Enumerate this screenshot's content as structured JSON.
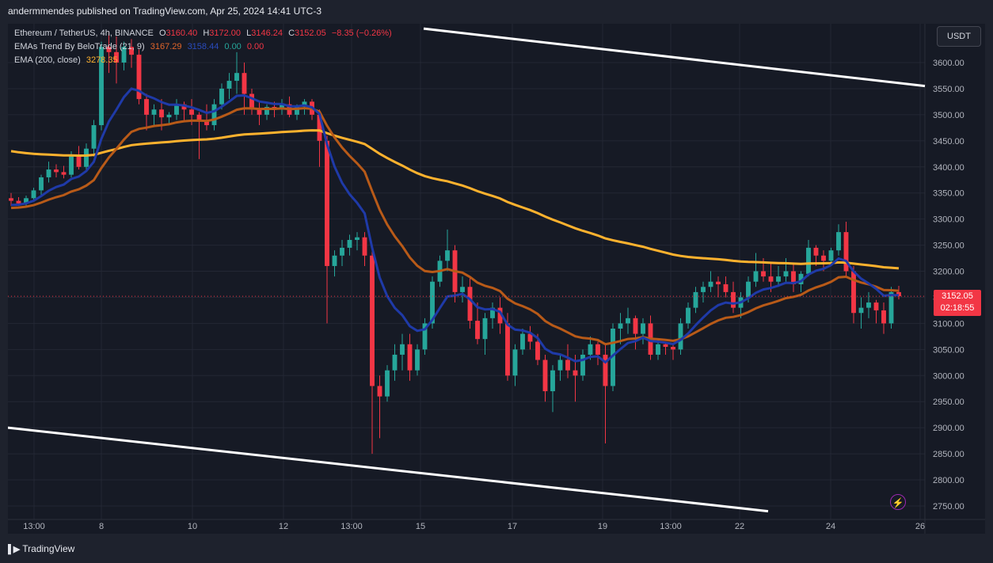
{
  "header": {
    "title": "andermmendes published on TradingView.com, Apr 25, 2024 14:41 UTC-3"
  },
  "legend": {
    "symbol": "Ethereum / TetherUS, 4h, BINANCE",
    "open_label": "O",
    "open": "3160.40",
    "high_label": "H",
    "high": "3172.00",
    "low_label": "L",
    "low": "3146.24",
    "close_label": "C",
    "close": "3152.05",
    "change": "−8.35 (−0.26%)",
    "ema_trend_name": "EMAs Trend By BeloTrade (21, 9)",
    "ema_trend_v1": "3167.29",
    "ema_trend_v2": "3158.44",
    "ema_trend_v3": "0.00",
    "ema_trend_v4": "0.00",
    "ema200_name": "EMA (200, close)",
    "ema200_value": "3278.35"
  },
  "currency_button": "USDT",
  "price_tag": {
    "price": "3152.05",
    "countdown": "02:18:55"
  },
  "footer": {
    "brand": "TradingView"
  },
  "colors": {
    "up": "#26a69a",
    "down": "#f23645",
    "ema21": "#b85a18",
    "ema9": "#1f3aa8",
    "ema200": "#ffb22e",
    "channel": "#ffffff",
    "background": "#161a25"
  },
  "chart_data": {
    "type": "candlestick",
    "symbol": "ETHUSDT",
    "interval": "4h",
    "x_tick_labels": [
      "13:00",
      "8",
      "10",
      "12",
      "13:00",
      "15",
      "17",
      "19",
      "13:00",
      "22",
      "24",
      "26"
    ],
    "y_tick_labels": [
      "3600.00",
      "3550.00",
      "3500.00",
      "3450.00",
      "3400.00",
      "3350.00",
      "3300.00",
      "3250.00",
      "3200.00",
      "3150.00",
      "3100.00",
      "3050.00",
      "3000.00",
      "2950.00",
      "2900.00",
      "2850.00",
      "2800.00",
      "2750.00"
    ],
    "ylim": [
      2735,
      3650
    ],
    "candles_ohlc": [
      [
        3340,
        3350,
        3325,
        3335
      ],
      [
        3335,
        3342,
        3325,
        3330
      ],
      [
        3330,
        3345,
        3322,
        3340
      ],
      [
        3340,
        3360,
        3335,
        3355
      ],
      [
        3355,
        3385,
        3345,
        3380
      ],
      [
        3380,
        3410,
        3370,
        3395
      ],
      [
        3395,
        3405,
        3380,
        3390
      ],
      [
        3390,
        3402,
        3378,
        3385
      ],
      [
        3385,
        3430,
        3380,
        3420
      ],
      [
        3420,
        3440,
        3395,
        3400
      ],
      [
        3400,
        3445,
        3395,
        3435
      ],
      [
        3435,
        3490,
        3420,
        3480
      ],
      [
        3480,
        3640,
        3470,
        3630
      ],
      [
        3630,
        3660,
        3580,
        3620
      ],
      [
        3620,
        3650,
        3560,
        3600
      ],
      [
        3600,
        3640,
        3585,
        3630
      ],
      [
        3630,
        3645,
        3590,
        3615
      ],
      [
        3615,
        3625,
        3520,
        3530
      ],
      [
        3530,
        3540,
        3470,
        3500
      ],
      [
        3500,
        3520,
        3480,
        3510
      ],
      [
        3510,
        3530,
        3470,
        3495
      ],
      [
        3495,
        3505,
        3480,
        3500
      ],
      [
        3500,
        3530,
        3490,
        3520
      ],
      [
        3520,
        3525,
        3490,
        3510
      ],
      [
        3510,
        3530,
        3480,
        3500
      ],
      [
        3500,
        3505,
        3415,
        3490
      ],
      [
        3490,
        3520,
        3470,
        3480
      ],
      [
        3480,
        3530,
        3470,
        3520
      ],
      [
        3520,
        3560,
        3510,
        3550
      ],
      [
        3550,
        3580,
        3530,
        3565
      ],
      [
        3565,
        3620,
        3540,
        3580
      ],
      [
        3580,
        3600,
        3500,
        3540
      ],
      [
        3540,
        3550,
        3500,
        3510
      ],
      [
        3510,
        3525,
        3480,
        3500
      ],
      [
        3500,
        3520,
        3490,
        3515
      ],
      [
        3515,
        3525,
        3495,
        3510
      ],
      [
        3510,
        3530,
        3500,
        3520
      ],
      [
        3520,
        3535,
        3495,
        3500
      ],
      [
        3500,
        3520,
        3490,
        3515
      ],
      [
        3515,
        3530,
        3500,
        3525
      ],
      [
        3525,
        3530,
        3490,
        3500
      ],
      [
        3500,
        3510,
        3400,
        3450
      ],
      [
        3450,
        3460,
        3100,
        3210
      ],
      [
        3210,
        3240,
        3190,
        3230
      ],
      [
        3230,
        3260,
        3210,
        3245
      ],
      [
        3245,
        3270,
        3230,
        3260
      ],
      [
        3260,
        3275,
        3240,
        3265
      ],
      [
        3265,
        3275,
        3210,
        3230
      ],
      [
        3230,
        3240,
        2850,
        2980
      ],
      [
        2980,
        3000,
        2880,
        2960
      ],
      [
        2960,
        3020,
        2950,
        3010
      ],
      [
        3010,
        3060,
        2990,
        3040
      ],
      [
        3040,
        3080,
        3010,
        3060
      ],
      [
        3060,
        3080,
        2990,
        3010
      ],
      [
        3010,
        3060,
        3000,
        3050
      ],
      [
        3050,
        3110,
        3040,
        3100
      ],
      [
        3100,
        3190,
        3090,
        3180
      ],
      [
        3180,
        3230,
        3170,
        3220
      ],
      [
        3220,
        3280,
        3200,
        3240
      ],
      [
        3240,
        3250,
        3140,
        3160
      ],
      [
        3160,
        3190,
        3140,
        3170
      ],
      [
        3170,
        3190,
        3090,
        3105
      ],
      [
        3105,
        3140,
        3060,
        3070
      ],
      [
        3070,
        3120,
        3040,
        3110
      ],
      [
        3110,
        3140,
        3090,
        3130
      ],
      [
        3130,
        3150,
        3080,
        3100
      ],
      [
        3100,
        3120,
        2990,
        3000
      ],
      [
        3000,
        3060,
        2980,
        3050
      ],
      [
        3050,
        3090,
        3040,
        3080
      ],
      [
        3080,
        3095,
        3050,
        3065
      ],
      [
        3065,
        3080,
        3020,
        3030
      ],
      [
        3030,
        3040,
        2950,
        2970
      ],
      [
        2970,
        3020,
        2930,
        3010
      ],
      [
        3010,
        3040,
        2990,
        3030
      ],
      [
        3030,
        3060,
        2995,
        3010
      ],
      [
        3010,
        3040,
        2950,
        3000
      ],
      [
        3000,
        3050,
        2990,
        3040
      ],
      [
        3040,
        3075,
        3030,
        3060
      ],
      [
        3060,
        3065,
        3020,
        3040
      ],
      [
        3040,
        3060,
        2870,
        2980
      ],
      [
        2980,
        3100,
        2970,
        3090
      ],
      [
        3090,
        3120,
        3060,
        3100
      ],
      [
        3100,
        3130,
        3080,
        3110
      ],
      [
        3110,
        3115,
        3050,
        3080
      ],
      [
        3080,
        3110,
        3060,
        3100
      ],
      [
        3100,
        3115,
        3030,
        3040
      ],
      [
        3040,
        3070,
        3030,
        3060
      ],
      [
        3060,
        3065,
        3040,
        3055
      ],
      [
        3055,
        3060,
        3030,
        3050
      ],
      [
        3050,
        3110,
        3040,
        3100
      ],
      [
        3100,
        3140,
        3090,
        3130
      ],
      [
        3130,
        3170,
        3120,
        3160
      ],
      [
        3160,
        3180,
        3140,
        3170
      ],
      [
        3170,
        3200,
        3160,
        3180
      ],
      [
        3180,
        3190,
        3150,
        3175
      ],
      [
        3175,
        3190,
        3150,
        3160
      ],
      [
        3160,
        3180,
        3120,
        3130
      ],
      [
        3130,
        3160,
        3110,
        3150
      ],
      [
        3150,
        3190,
        3140,
        3180
      ],
      [
        3180,
        3235,
        3170,
        3200
      ],
      [
        3200,
        3225,
        3180,
        3190
      ],
      [
        3190,
        3215,
        3160,
        3180
      ],
      [
        3180,
        3210,
        3170,
        3190
      ],
      [
        3190,
        3225,
        3180,
        3200
      ],
      [
        3200,
        3215,
        3160,
        3175
      ],
      [
        3175,
        3200,
        3160,
        3195
      ],
      [
        3195,
        3260,
        3190,
        3245
      ],
      [
        3245,
        3250,
        3210,
        3230
      ],
      [
        3230,
        3240,
        3200,
        3220
      ],
      [
        3220,
        3245,
        3210,
        3240
      ],
      [
        3240,
        3290,
        3230,
        3275
      ],
      [
        3275,
        3295,
        3190,
        3200
      ],
      [
        3200,
        3210,
        3100,
        3120
      ],
      [
        3120,
        3150,
        3090,
        3130
      ],
      [
        3130,
        3160,
        3110,
        3140
      ],
      [
        3140,
        3145,
        3100,
        3125
      ],
      [
        3125,
        3140,
        3080,
        3100
      ],
      [
        3100,
        3170,
        3090,
        3160
      ],
      [
        3160,
        3172,
        3146,
        3152
      ]
    ],
    "ema200": {
      "name": "EMA (200, close)",
      "last": 3278.35
    },
    "ema_fast": {
      "name": "EMAs Trend By BeloTrade (21, 9)"
    },
    "channel_upper": {
      "from_price": 3665,
      "to_price": 3555
    },
    "channel_lower": {
      "from_price": 2900,
      "to_price": 2740
    },
    "current_price": 3152.05
  }
}
